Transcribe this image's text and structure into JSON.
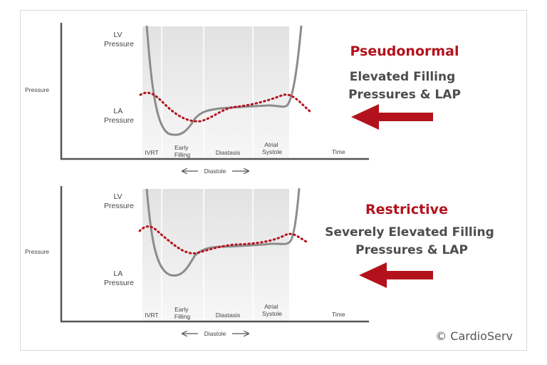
{
  "colors": {
    "accent_red": "#b3121c",
    "curve_gray": "#8c8c8c",
    "axis": "#555555",
    "band_fill": "#e6e6e6"
  },
  "panels": [
    {
      "id": "pseudonormal",
      "title": "Pseudonormal",
      "subtitle_lines": [
        "Elevated Filling",
        "Pressures & LAP"
      ],
      "y_axis_label": "Pressure",
      "x_axis_label": "Time",
      "lv_label": [
        "LV",
        "Pressure"
      ],
      "la_label": [
        "LA",
        "Pressure"
      ],
      "phases": [
        [
          "IVRT"
        ],
        [
          "Early",
          "Filling"
        ],
        [
          "Diastasis"
        ],
        [
          "Atrial",
          "Systole"
        ]
      ],
      "diastole_label": "Diastole"
    },
    {
      "id": "restrictive",
      "title": "Restrictive",
      "subtitle_lines": [
        "Severely Elevated Filling",
        "Pressures & LAP"
      ],
      "y_axis_label": "Pressure",
      "x_axis_label": "Time",
      "lv_label": [
        "LV",
        "Pressure"
      ],
      "la_label": [
        "LA",
        "Pressure"
      ],
      "phases": [
        [
          "IVRT"
        ],
        [
          "Early",
          "Filling"
        ],
        [
          "Diastasis"
        ],
        [
          "Atrial",
          "Systole"
        ]
      ],
      "diastole_label": "Diastole"
    }
  ],
  "copyright": "© CardioServ"
}
